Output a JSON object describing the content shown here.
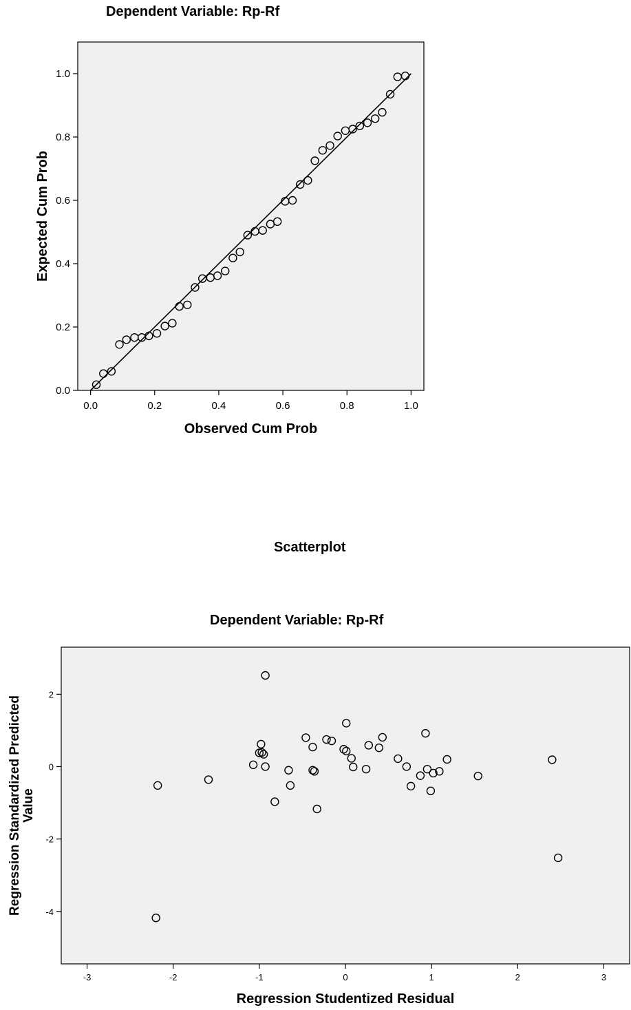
{
  "chart_data": [
    {
      "type": "scatter",
      "title": "Dependent Variable: Rp-Rf",
      "xlabel": "Observed Cum Prob",
      "ylabel": "Expected Cum Prob",
      "xlim": [
        -0.04,
        1.04
      ],
      "ylim": [
        0.0,
        1.1
      ],
      "xticks": [
        0.0,
        0.2,
        0.4,
        0.6,
        0.8,
        1.0
      ],
      "yticks": [
        0.0,
        0.2,
        0.4,
        0.6,
        0.8,
        1.0
      ],
      "xtick_labels": [
        "0.0",
        "0.2",
        "0.4",
        "0.6",
        "0.8",
        "1.0"
      ],
      "ytick_labels": [
        "0.0",
        "0.2",
        "0.4",
        "0.6",
        "0.8",
        "1.0"
      ],
      "reference_line": [
        [
          0,
          0
        ],
        [
          1,
          1
        ]
      ],
      "points": [
        [
          0.018,
          0.018
        ],
        [
          0.04,
          0.053
        ],
        [
          0.065,
          0.06
        ],
        [
          0.09,
          0.145
        ],
        [
          0.112,
          0.16
        ],
        [
          0.137,
          0.167
        ],
        [
          0.16,
          0.167
        ],
        [
          0.182,
          0.172
        ],
        [
          0.207,
          0.18
        ],
        [
          0.232,
          0.203
        ],
        [
          0.255,
          0.212
        ],
        [
          0.277,
          0.265
        ],
        [
          0.302,
          0.27
        ],
        [
          0.326,
          0.325
        ],
        [
          0.349,
          0.353
        ],
        [
          0.374,
          0.356
        ],
        [
          0.396,
          0.362
        ],
        [
          0.42,
          0.377
        ],
        [
          0.444,
          0.418
        ],
        [
          0.466,
          0.437
        ],
        [
          0.49,
          0.49
        ],
        [
          0.513,
          0.502
        ],
        [
          0.537,
          0.505
        ],
        [
          0.561,
          0.525
        ],
        [
          0.583,
          0.533
        ],
        [
          0.607,
          0.597
        ],
        [
          0.63,
          0.6
        ],
        [
          0.654,
          0.65
        ],
        [
          0.678,
          0.663
        ],
        [
          0.7,
          0.725
        ],
        [
          0.724,
          0.758
        ],
        [
          0.747,
          0.773
        ],
        [
          0.771,
          0.803
        ],
        [
          0.795,
          0.82
        ],
        [
          0.818,
          0.825
        ],
        [
          0.84,
          0.835
        ],
        [
          0.864,
          0.845
        ],
        [
          0.888,
          0.858
        ],
        [
          0.91,
          0.878
        ],
        [
          0.935,
          0.935
        ],
        [
          0.958,
          0.99
        ],
        [
          0.982,
          0.993
        ]
      ]
    },
    {
      "type": "scatter",
      "heading": "Scatterplot",
      "title": "Dependent Variable: Rp-Rf",
      "xlabel": "Regression Studentized Residual",
      "ylabel_line1": "Regression Standardized Predicted",
      "ylabel_line2": "Value",
      "xlim": [
        -3.3,
        3.3
      ],
      "ylim": [
        -5.45,
        3.3
      ],
      "xticks": [
        -3,
        -2,
        -1,
        0,
        1,
        2,
        3
      ],
      "yticks": [
        2,
        0,
        -2,
        -4
      ],
      "xtick_labels": [
        "-3",
        "-2",
        "-1",
        "0",
        "1",
        "2",
        "3"
      ],
      "ytick_labels": [
        "2",
        "0",
        "-2",
        "-4"
      ],
      "points": [
        [
          -2.18,
          -0.52
        ],
        [
          -2.2,
          -4.18
        ],
        [
          -1.59,
          -0.36
        ],
        [
          -1.07,
          0.05
        ],
        [
          -1.0,
          0.38
        ],
        [
          -0.98,
          0.62
        ],
        [
          -0.97,
          0.39
        ],
        [
          -0.95,
          0.34
        ],
        [
          -0.93,
          2.52
        ],
        [
          -0.93,
          0.0
        ],
        [
          -0.82,
          -0.97
        ],
        [
          -0.66,
          -0.1
        ],
        [
          -0.64,
          -0.52
        ],
        [
          -0.46,
          0.8
        ],
        [
          -0.38,
          -0.1
        ],
        [
          -0.38,
          0.54
        ],
        [
          -0.36,
          -0.13
        ],
        [
          -0.33,
          -1.17
        ],
        [
          -0.22,
          0.75
        ],
        [
          -0.16,
          0.71
        ],
        [
          -0.02,
          0.48
        ],
        [
          0.01,
          1.2
        ],
        [
          0.01,
          0.43
        ],
        [
          0.07,
          0.23
        ],
        [
          0.09,
          -0.01
        ],
        [
          0.24,
          -0.07
        ],
        [
          0.27,
          0.59
        ],
        [
          0.39,
          0.52
        ],
        [
          0.43,
          0.81
        ],
        [
          0.61,
          0.22
        ],
        [
          0.71,
          0.0
        ],
        [
          0.76,
          -0.54
        ],
        [
          0.87,
          -0.25
        ],
        [
          0.93,
          0.92
        ],
        [
          0.95,
          -0.07
        ],
        [
          0.99,
          -0.67
        ],
        [
          1.02,
          -0.18
        ],
        [
          1.09,
          -0.13
        ],
        [
          1.18,
          0.2
        ],
        [
          1.54,
          -0.26
        ],
        [
          2.4,
          0.19
        ],
        [
          2.47,
          -2.52
        ]
      ]
    }
  ]
}
